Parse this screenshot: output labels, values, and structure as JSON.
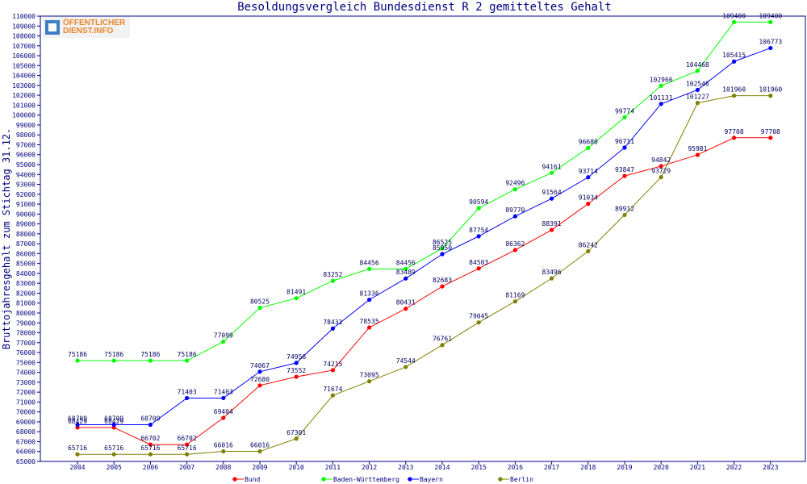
{
  "logo": {
    "line1": "ÖFFENTLICHER",
    "line2": "DIENST.INFO"
  },
  "chart_data": {
    "type": "line",
    "title": "Besoldungsvergleich Bundesdienst R 2 gemitteltes Gehalt",
    "xlabel": "",
    "ylabel": "Bruttojahresgehalt zum Stichtag 31.12.",
    "ylim": [
      65000,
      110000
    ],
    "ytick_step": 1000,
    "grid": false,
    "legend_position": "bottom",
    "x": [
      "2004",
      "2005",
      "2006",
      "2007",
      "2008",
      "2009",
      "2010",
      "2011",
      "2012",
      "2013",
      "2014",
      "2015",
      "2016",
      "2017",
      "2018",
      "2019",
      "2020",
      "2021",
      "2022",
      "2023"
    ],
    "series": [
      {
        "name": "Bund",
        "color": "#ff0000",
        "values": [
          68429,
          68429,
          66702,
          66702,
          69404,
          72680,
          73552,
          74215,
          78535,
          80431,
          82683,
          84503,
          86362,
          88391,
          91034,
          93847,
          94842,
          95981,
          97708,
          97708
        ],
        "labels": [
          "68429",
          "68429",
          "66702",
          "66702",
          "69404",
          "72680",
          "73552",
          "74215",
          "78535",
          "80431",
          "82683",
          "84503",
          "86362",
          "88391",
          "91034",
          "93847",
          "94842",
          "95981",
          "97708",
          "97708"
        ]
      },
      {
        "name": "Baden-Württemberg",
        "color": "#00ff00",
        "values": [
          75186,
          75186,
          75186,
          75186,
          77099,
          80525,
          81491,
          83252,
          84456,
          84456,
          86525,
          90594,
          92496,
          94161,
          96680,
          99774,
          102966,
          104468,
          109400,
          109400
        ],
        "labels": [
          "75186",
          "75186",
          "75186",
          "75186",
          "77099",
          "80525",
          "81491",
          "83252",
          "84456",
          "84456",
          "86525",
          "90594",
          "92496",
          "94161",
          "96680",
          "99774",
          "102966",
          "104468",
          "109400",
          "109400"
        ]
      },
      {
        "name": "Bayern",
        "color": "#0000ff",
        "values": [
          68709,
          68709,
          68709,
          71403,
          71403,
          74067,
          74956,
          78431,
          81336,
          83489,
          85950,
          87754,
          89770,
          91564,
          93714,
          96711,
          101131,
          102546,
          105415,
          106773
        ],
        "labels": [
          "68709",
          "68709",
          "68709",
          "71403",
          "71403",
          "74067",
          "74956",
          "78431",
          "81336",
          "83489",
          "85950",
          "87754",
          "89770",
          "91564",
          "93714",
          "96711",
          "101131",
          "102546",
          "105415",
          "106773"
        ]
      },
      {
        "name": "Berlin",
        "color": "#808000",
        "values": [
          65716,
          65716,
          65716,
          65716,
          66016,
          66016,
          67301,
          71674,
          73095,
          74544,
          76761,
          79045,
          81169,
          83496,
          86242,
          89912,
          93729,
          101227,
          101960,
          101960
        ],
        "labels": [
          "65716",
          "65716",
          "65716",
          "65716",
          "66016",
          "66016",
          "67301",
          "71674",
          "73095",
          "74544",
          "76761",
          "79045",
          "81169",
          "83496",
          "86242",
          "89912",
          "93729",
          "101227",
          "101960",
          "101960"
        ]
      }
    ]
  }
}
